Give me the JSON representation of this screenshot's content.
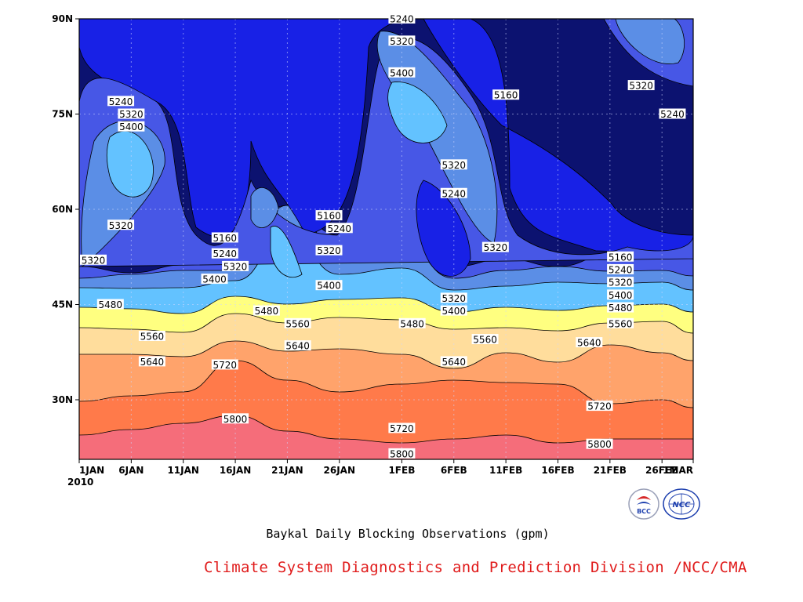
{
  "chart_data": {
    "type": "contour",
    "caption": "Baykal Daily Blocking Observations (gpm)",
    "x_ticks": [
      "1JAN",
      "6JAN",
      "11JAN",
      "16JAN",
      "21JAN",
      "26JAN",
      "1FEB",
      "6FEB",
      "11FEB",
      "16FEB",
      "21FEB",
      "26FEB",
      "1MAR"
    ],
    "x_year": "2010",
    "y_ticks": [
      "30N",
      "45N",
      "60N",
      "75N",
      "90N"
    ],
    "contour_levels": [
      5160,
      5240,
      5320,
      5400,
      5480,
      5560,
      5640,
      5720,
      5800
    ],
    "band_colors": [
      "#0c1270",
      "#1821e6",
      "#4757e6",
      "#5b8ee6",
      "#63c2ff",
      "#ffff80",
      "#ffdd9c",
      "#ffa36b",
      "#ff7a4a",
      "#f56d7a"
    ],
    "contour_labels": [
      {
        "value": "5240",
        "date": "1FEB",
        "lat": 90
      },
      {
        "value": "5320",
        "date": "1FEB",
        "lat": 86.5
      },
      {
        "value": "5400",
        "date": "1FEB",
        "lat": 81.5
      },
      {
        "value": "5160",
        "date": "11FEB",
        "lat": 78
      },
      {
        "value": "5320",
        "date": "24FEB",
        "lat": 79.5
      },
      {
        "value": "5240",
        "date": "27FEB",
        "lat": 75
      },
      {
        "value": "5240",
        "date": "5JAN",
        "lat": 77
      },
      {
        "value": "5320",
        "date": "6JAN",
        "lat": 75
      },
      {
        "value": "5400",
        "date": "6JAN",
        "lat": 73
      },
      {
        "value": "5320",
        "date": "6FEB",
        "lat": 67
      },
      {
        "value": "5240",
        "date": "6FEB",
        "lat": 62.5
      },
      {
        "value": "5320",
        "date": "5JAN",
        "lat": 57.5
      },
      {
        "value": "5160",
        "date": "25JAN",
        "lat": 59
      },
      {
        "value": "5240",
        "date": "26JAN",
        "lat": 57
      },
      {
        "value": "5160",
        "date": "15JAN",
        "lat": 55.5
      },
      {
        "value": "5240",
        "date": "15JAN",
        "lat": 53
      },
      {
        "value": "5320",
        "date": "16JAN",
        "lat": 51
      },
      {
        "value": "5320",
        "date": "25JAN",
        "lat": 53.5
      },
      {
        "value": "5320",
        "date": "10FEB",
        "lat": 54
      },
      {
        "value": "5160",
        "date": "22FEB",
        "lat": 52.5
      },
      {
        "value": "5240",
        "date": "22FEB",
        "lat": 50.5
      },
      {
        "value": "5320",
        "date": "22FEB",
        "lat": 48.5
      },
      {
        "value": "5400",
        "date": "22FEB",
        "lat": 46.5
      },
      {
        "value": "5480",
        "date": "22FEB",
        "lat": 44.5
      },
      {
        "value": "5560",
        "date": "22FEB",
        "lat": 42
      },
      {
        "value": "5320",
        "date": "1JAN",
        "lat": 52
      },
      {
        "value": "5400",
        "date": "14JAN",
        "lat": 49
      },
      {
        "value": "5400",
        "date": "25JAN",
        "lat": 48
      },
      {
        "value": "5320",
        "date": "6FEB",
        "lat": 46
      },
      {
        "value": "5400",
        "date": "6FEB",
        "lat": 44
      },
      {
        "value": "5480",
        "date": "4JAN",
        "lat": 45
      },
      {
        "value": "5480",
        "date": "19JAN",
        "lat": 44
      },
      {
        "value": "5480",
        "date": "2FEB",
        "lat": 42
      },
      {
        "value": "5560",
        "date": "8JAN",
        "lat": 40
      },
      {
        "value": "5560",
        "date": "22JAN",
        "lat": 42
      },
      {
        "value": "5560",
        "date": "9FEB",
        "lat": 39.5
      },
      {
        "value": "5640",
        "date": "8JAN",
        "lat": 36
      },
      {
        "value": "5640",
        "date": "22JAN",
        "lat": 38.5
      },
      {
        "value": "5640",
        "date": "6FEB",
        "lat": 36
      },
      {
        "value": "5640",
        "date": "19FEB",
        "lat": 39
      },
      {
        "value": "5720",
        "date": "15JAN",
        "lat": 35.5
      },
      {
        "value": "5720",
        "date": "20FEB",
        "lat": 29
      },
      {
        "value": "5800",
        "date": "16JAN",
        "lat": 27
      },
      {
        "value": "5720",
        "date": "1FEB",
        "lat": 25.5
      },
      {
        "value": "5800",
        "date": "1FEB",
        "lat": 21.5
      },
      {
        "value": "5800",
        "date": "20FEB",
        "lat": 23
      }
    ]
  },
  "logos": {
    "left_text": "BCC",
    "right_text": "NCC"
  },
  "footer": {
    "credit": "Climate System Diagnostics and Prediction Division /NCC/CMA"
  }
}
